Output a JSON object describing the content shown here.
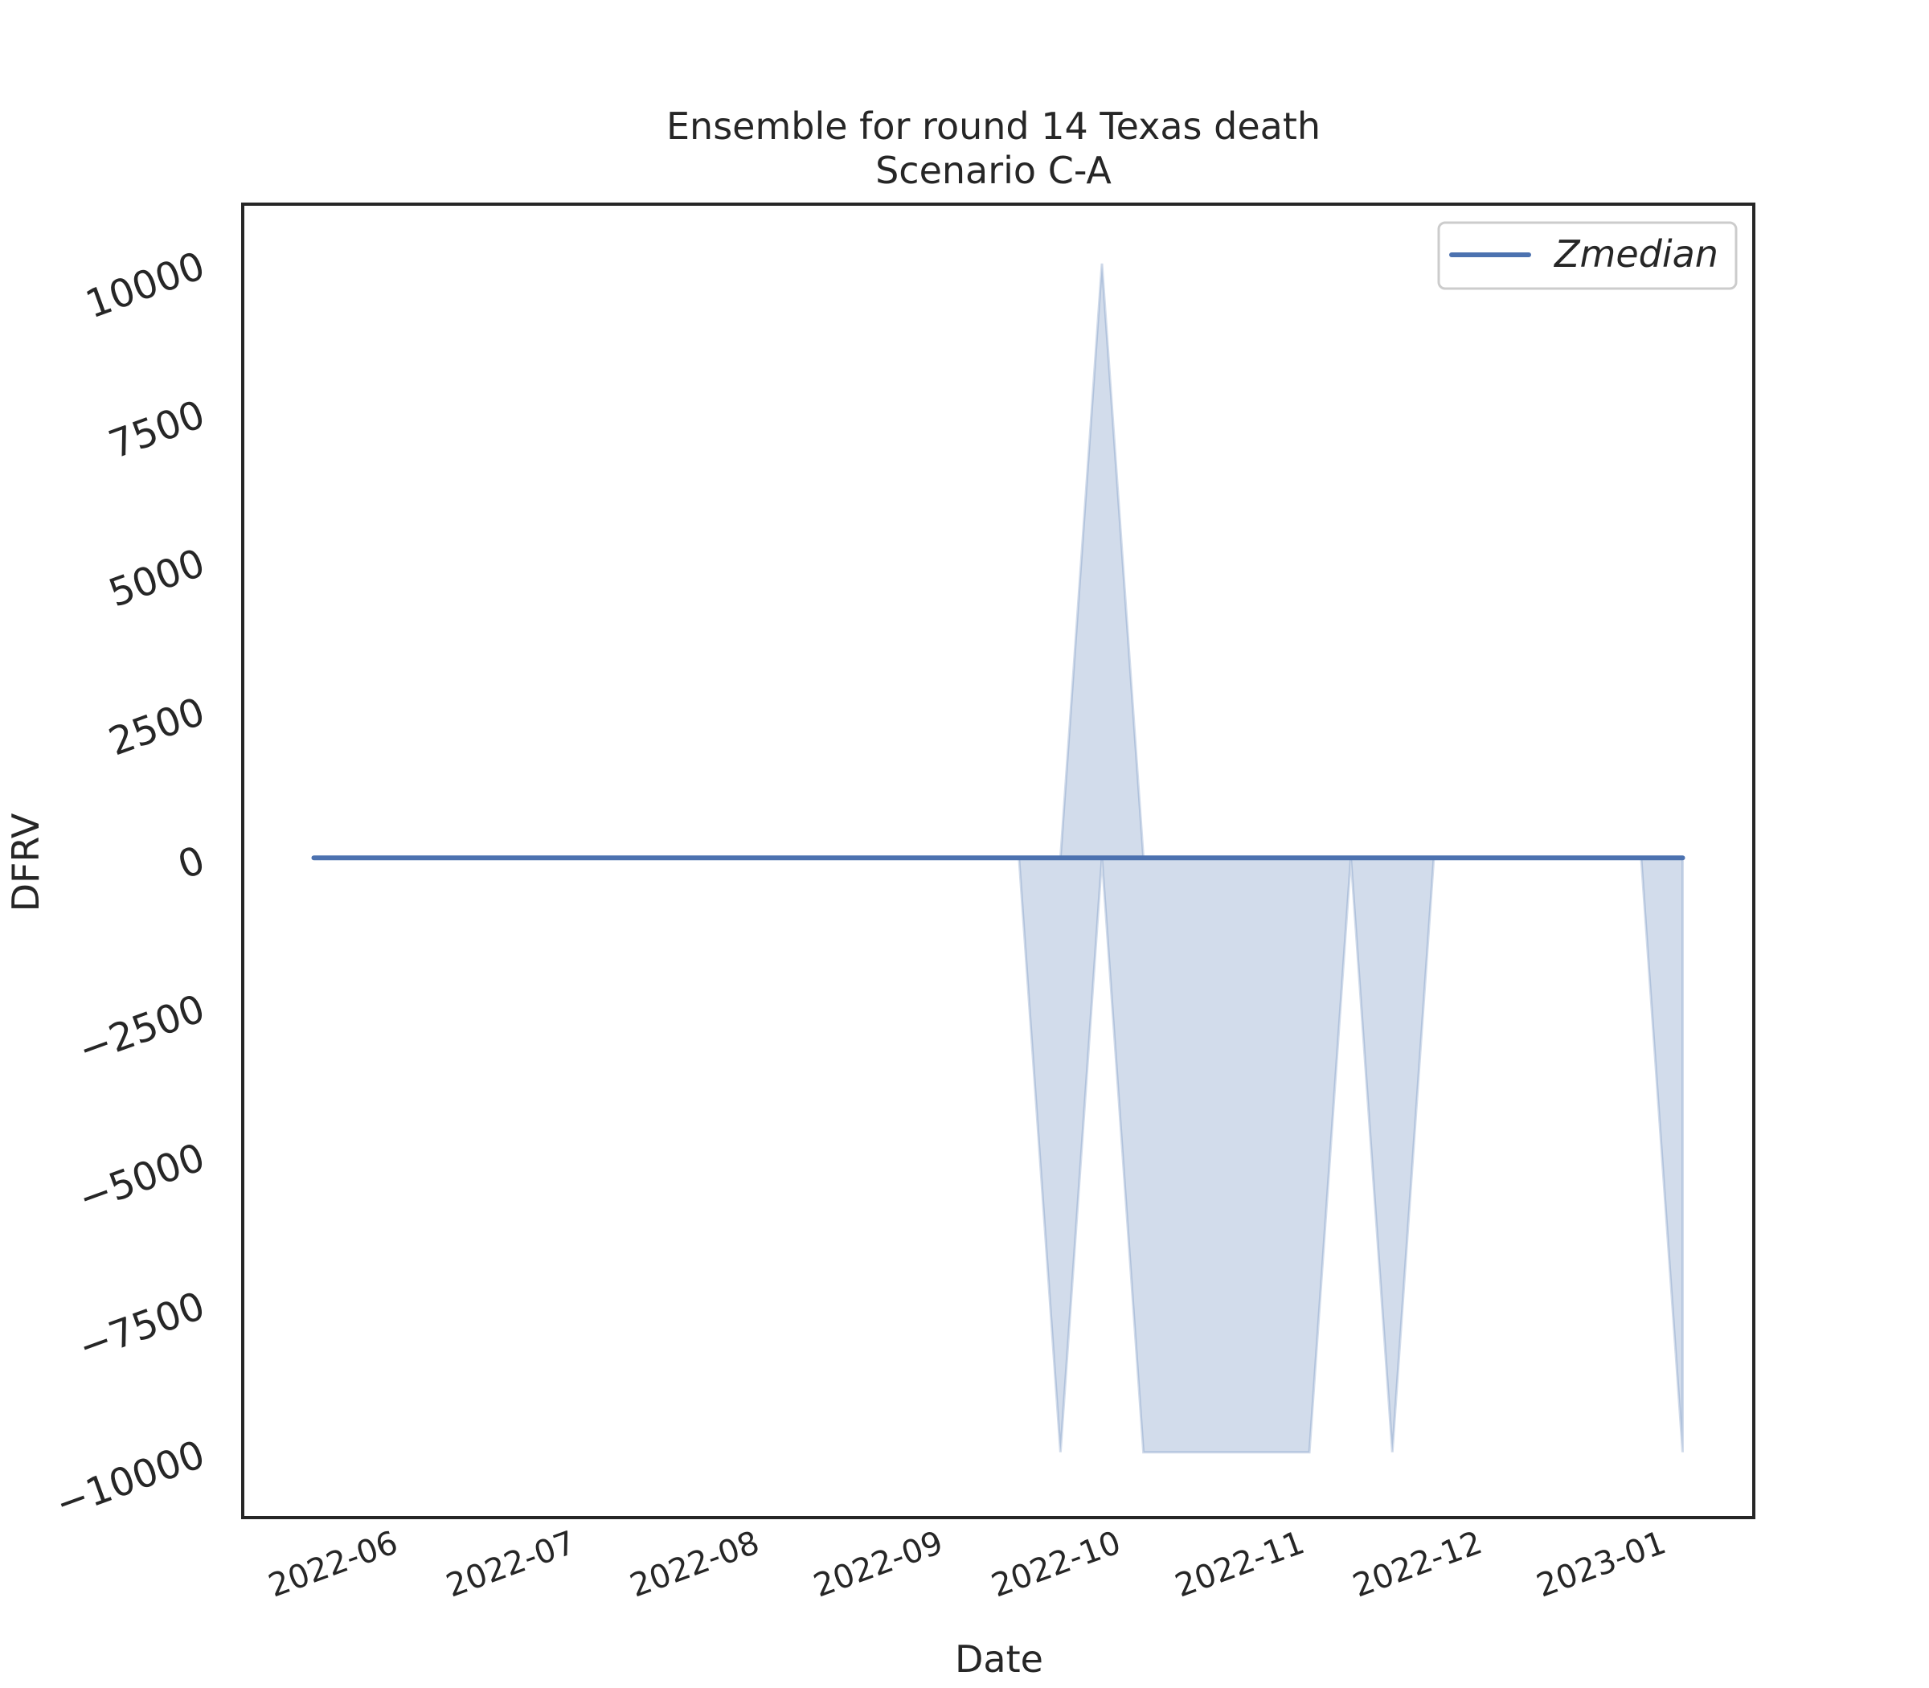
{
  "chart_data": {
    "type": "line",
    "title": "Ensemble for round 14 Texas death",
    "subtitle": "Scenario C-A",
    "xlabel": "Date",
    "ylabel": "DFRV",
    "x_ticks": [
      "2022-06",
      "2022-07",
      "2022-08",
      "2022-09",
      "2022-10",
      "2022-11",
      "2022-12",
      "2023-01"
    ],
    "x_tick_dates": [
      "2022-06-01",
      "2022-07-01",
      "2022-08-01",
      "2022-09-01",
      "2022-10-01",
      "2022-11-01",
      "2022-12-01",
      "2023-01-01"
    ],
    "y_ticks": [
      10000,
      7500,
      5000,
      2500,
      0,
      -2500,
      -5000,
      -7500,
      -10000
    ],
    "y_tick_labels": [
      "10000",
      "7500",
      "5000",
      "2500",
      "0",
      "−2500",
      "−5000",
      "−7500",
      "−10000"
    ],
    "xlim": [
      "2022-05-09",
      "2023-01-19"
    ],
    "ylim": [
      -11100,
      11000
    ],
    "grid": false,
    "legend": {
      "position": "top-right",
      "entries": [
        "Zmedian"
      ]
    },
    "series": [
      {
        "name": "Zmedian",
        "color": "#4c72b0",
        "x": [
          "2022-05-21",
          "2023-01-07"
        ],
        "y": [
          0,
          0
        ]
      }
    ],
    "band": {
      "color": "#4c72b0",
      "x": [
        "2022-09-17",
        "2022-09-24",
        "2022-10-01",
        "2022-10-08",
        "2022-10-15",
        "2022-10-22",
        "2022-10-29",
        "2022-11-05",
        "2022-11-12",
        "2022-11-19",
        "2022-11-26",
        "2022-12-03",
        "2022-12-10",
        "2022-12-17",
        "2022-12-24",
        "2022-12-31",
        "2023-01-07"
      ],
      "lower": [
        0,
        -10000,
        0,
        -10000,
        -10000,
        -10000,
        -10000,
        -10000,
        0,
        -10000,
        0,
        0,
        0,
        0,
        0,
        0,
        -10000
      ],
      "upper": [
        0,
        0,
        10000,
        0,
        0,
        0,
        0,
        0,
        0,
        0,
        0,
        0,
        0,
        0,
        0,
        0,
        0
      ]
    }
  }
}
